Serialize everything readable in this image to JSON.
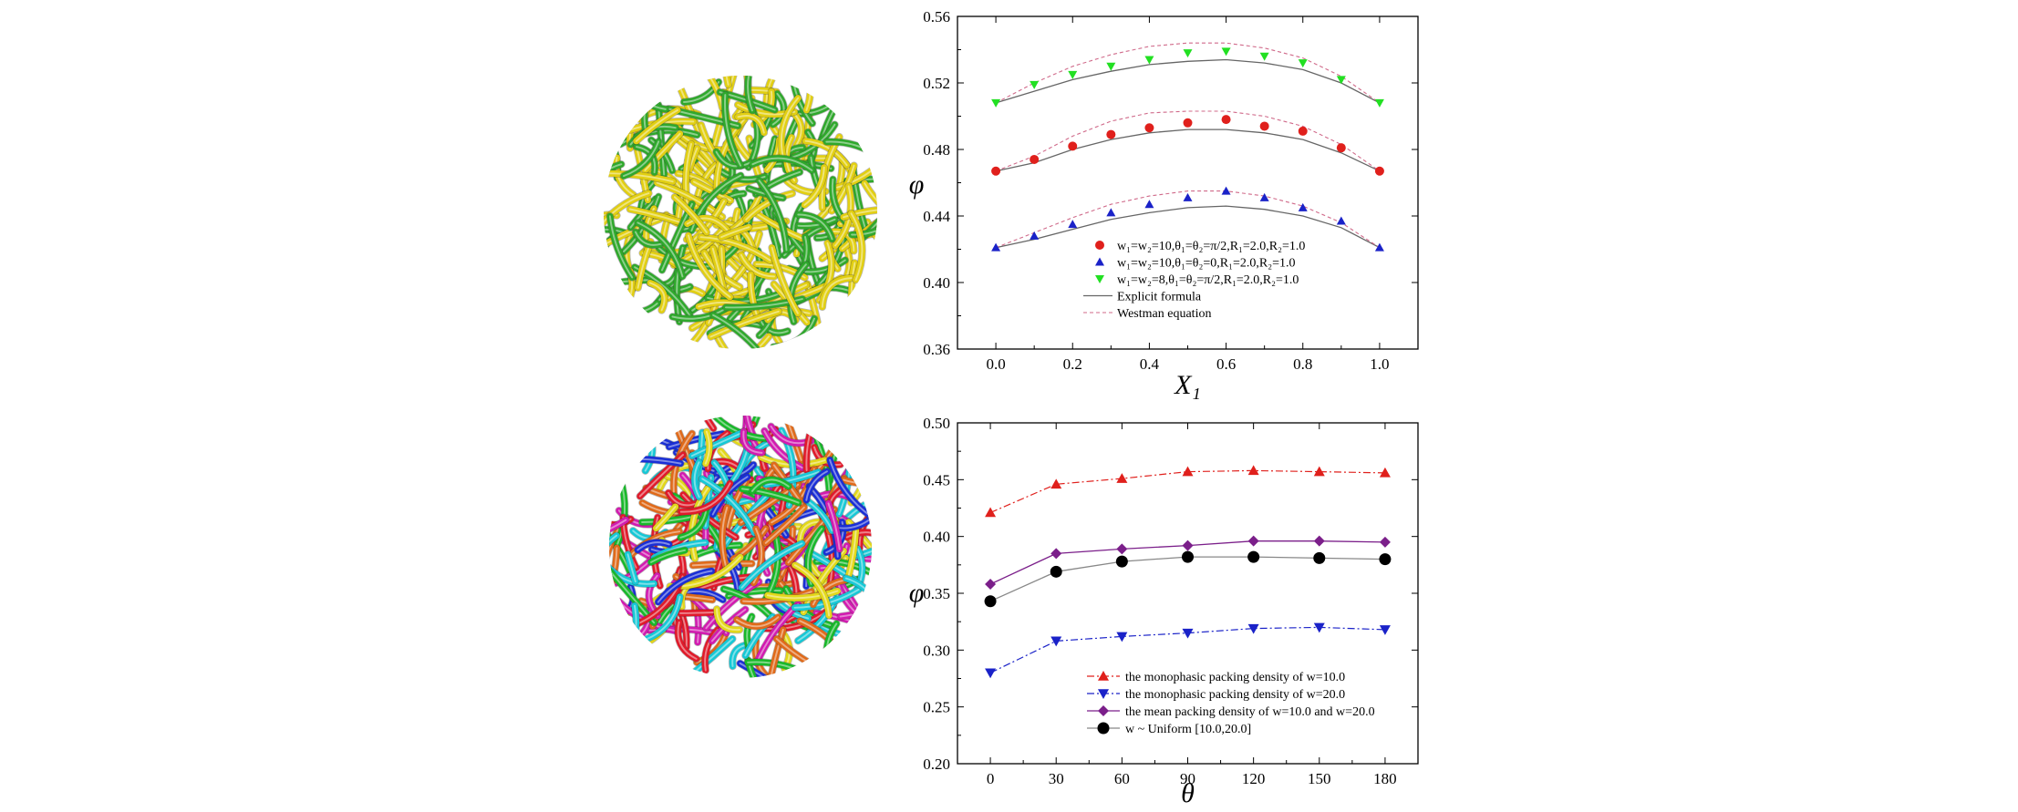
{
  "figure": {
    "panels": {
      "top_left": {
        "depicts": "packing of yellow and green fibers"
      },
      "bottom_left": {
        "depicts": "packing of multicolored fibers"
      }
    },
    "colors": {
      "yellow_fiber": "#e2cf12",
      "green_fiber": "#2fa82c",
      "multicolor": [
        "#e01a2a",
        "#1a2fd6",
        "#18b82a",
        "#e3d81a",
        "#16c8d6",
        "#d21bb0",
        "#e06a1a"
      ]
    }
  },
  "chart_data": [
    {
      "type": "scatter",
      "xlabel": "X₁",
      "ylabel": "φ",
      "xlim": [
        -0.1,
        1.1
      ],
      "ylim": [
        0.36,
        0.56
      ],
      "xticks": [
        "0.0",
        "0.2",
        "0.4",
        "0.6",
        "0.8",
        "1.0"
      ],
      "yticks": [
        "0.36",
        "0.40",
        "0.44",
        "0.48",
        "0.52",
        "0.56"
      ],
      "grid": false,
      "legend_position": "bottom-center",
      "legend": [
        "w₁=w₂=10,θ₁=θ₂=π/2,R₁=2.0,R₂=1.0",
        "w₁=w₂=10,θ₁=θ₂=0,R₁=2.0,R₂=1.0",
        "w₁=w₂=8,θ₁=θ₂=π/2,R₁=2.0,R₂=1.0",
        "Explicit formula",
        "Westman equation"
      ],
      "series": [
        {
          "name": "w₁=w₂=10,θ₁=θ₂=π/2,R₁=2.0,R₂=1.0",
          "marker": "circle",
          "color": "#e0201c",
          "x": [
            0,
            0.1,
            0.2,
            0.3,
            0.4,
            0.5,
            0.6,
            0.7,
            0.8,
            0.9,
            1.0
          ],
          "y": [
            0.467,
            0.474,
            0.482,
            0.489,
            0.493,
            0.496,
            0.498,
            0.494,
            0.491,
            0.481,
            0.467
          ],
          "explicit_formula": [
            0.467,
            0.472,
            0.48,
            0.486,
            0.49,
            0.492,
            0.492,
            0.49,
            0.486,
            0.478,
            0.467
          ],
          "westman_equation": [
            0.467,
            0.476,
            0.488,
            0.497,
            0.502,
            0.503,
            0.503,
            0.5,
            0.494,
            0.483,
            0.467
          ]
        },
        {
          "name": "w₁=w₂=10,θ₁=θ₂=0,R₁=2.0,R₂=1.0",
          "marker": "triangle-up",
          "color": "#1a22c8",
          "x": [
            0,
            0.1,
            0.2,
            0.3,
            0.4,
            0.5,
            0.6,
            0.7,
            0.8,
            0.9,
            1.0
          ],
          "y": [
            0.421,
            0.428,
            0.435,
            0.442,
            0.447,
            0.451,
            0.455,
            0.451,
            0.445,
            0.437,
            0.421
          ],
          "explicit_formula": [
            0.421,
            0.426,
            0.432,
            0.438,
            0.442,
            0.445,
            0.446,
            0.444,
            0.44,
            0.433,
            0.421
          ],
          "westman_equation": [
            0.421,
            0.43,
            0.439,
            0.447,
            0.452,
            0.455,
            0.455,
            0.452,
            0.446,
            0.436,
            0.421
          ]
        },
        {
          "name": "w₁=w₂=8,θ₁=θ₂=π/2,R₁=2.0,R₂=1.0",
          "marker": "triangle-down",
          "color": "#22e022",
          "x": [
            0,
            0.1,
            0.2,
            0.3,
            0.4,
            0.5,
            0.6,
            0.7,
            0.8,
            0.9,
            1.0
          ],
          "y": [
            0.508,
            0.519,
            0.525,
            0.53,
            0.534,
            0.538,
            0.539,
            0.536,
            0.532,
            0.522,
            0.508
          ],
          "explicit_formula": [
            0.508,
            0.515,
            0.522,
            0.527,
            0.531,
            0.533,
            0.534,
            0.532,
            0.528,
            0.52,
            0.508
          ],
          "westman_equation": [
            0.508,
            0.52,
            0.53,
            0.537,
            0.542,
            0.544,
            0.544,
            0.541,
            0.535,
            0.524,
            0.508
          ]
        }
      ]
    },
    {
      "type": "line",
      "xlabel": "θ",
      "ylabel": "φ",
      "xlim": [
        -15,
        195
      ],
      "ylim": [
        0.2,
        0.5
      ],
      "xticks": [
        "0",
        "30",
        "60",
        "90",
        "120",
        "150",
        "180"
      ],
      "yticks": [
        "0.20",
        "0.25",
        "0.30",
        "0.35",
        "0.40",
        "0.45",
        "0.50"
      ],
      "grid": false,
      "legend_position": "bottom-center",
      "legend": [
        "the monophasic packing density of w=10.0",
        "the monophasic packing density of w=20.0",
        "the mean packing density of w=10.0 and w=20.0",
        "w ~ Uniform [10.0,20.0]"
      ],
      "series": [
        {
          "name": "the monophasic packing density of w=10.0",
          "marker": "triangle-up",
          "line": "dash-dot",
          "color": "#e0201c",
          "x": [
            0,
            30,
            60,
            90,
            120,
            150,
            180
          ],
          "y": [
            0.421,
            0.446,
            0.451,
            0.457,
            0.458,
            0.457,
            0.456
          ]
        },
        {
          "name": "the monophasic packing density of w=20.0",
          "marker": "triangle-down",
          "line": "dash-dot",
          "color": "#1a22c8",
          "x": [
            0,
            30,
            60,
            90,
            120,
            150,
            180
          ],
          "y": [
            0.28,
            0.308,
            0.312,
            0.315,
            0.319,
            0.32,
            0.318
          ]
        },
        {
          "name": "the mean packing density of w=10.0 and w=20.0",
          "marker": "diamond",
          "line": "solid",
          "color": "#7b1f8a",
          "x": [
            0,
            30,
            60,
            90,
            120,
            150,
            180
          ],
          "y": [
            0.358,
            0.385,
            0.389,
            0.392,
            0.396,
            0.396,
            0.395
          ]
        },
        {
          "name": "w ~ Uniform [10.0,20.0]",
          "marker": "circle",
          "line": "solid-gray",
          "color": "#000000",
          "x": [
            0,
            30,
            60,
            90,
            120,
            150,
            180
          ],
          "y": [
            0.343,
            0.369,
            0.378,
            0.382,
            0.382,
            0.381,
            0.38
          ]
        }
      ]
    }
  ]
}
